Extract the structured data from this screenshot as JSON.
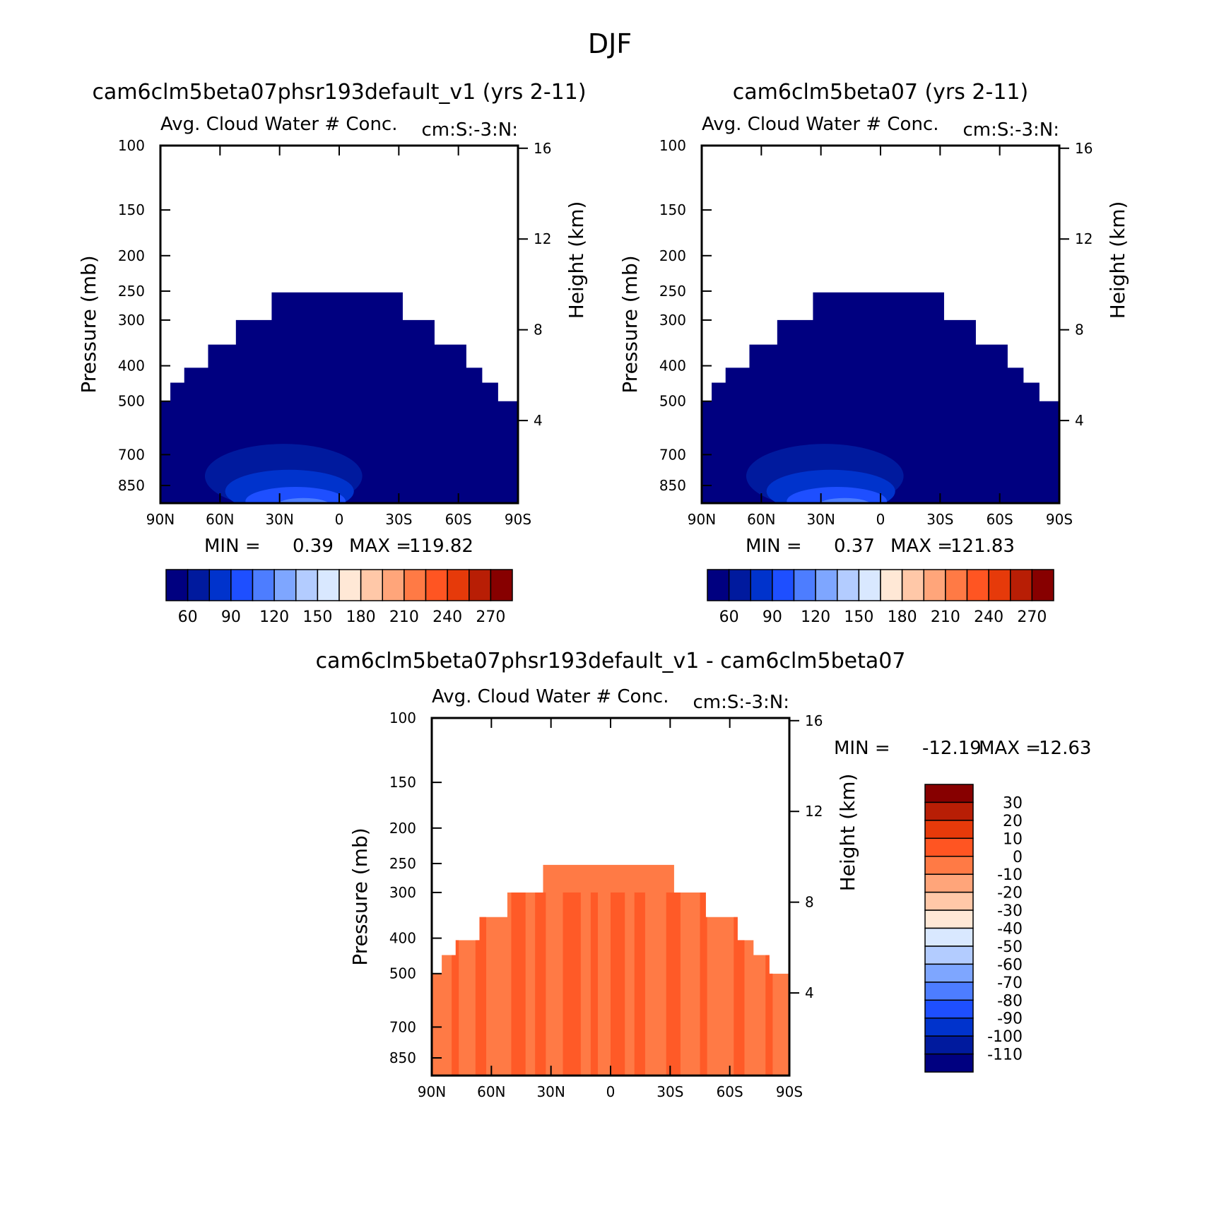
{
  "figure_title": "DJF",
  "colors": {
    "blue_scale": [
      "#000080",
      "#001a9e",
      "#0033cc",
      "#1e4fff",
      "#4d7dff",
      "#7ea6ff",
      "#b3ccff",
      "#d9e8ff"
    ],
    "warm_scale": [
      "#ffe8d6",
      "#ffc8a8",
      "#ffa57a",
      "#ff7a45",
      "#ff5522",
      "#e63a0a",
      "#b81e05",
      "#870000"
    ],
    "panel1_fill": "#000080",
    "diff_fill_light": "#ff7a45",
    "diff_fill_dark": "#ff5522"
  },
  "chart_data": [
    {
      "type": "heatmap",
      "title": "cam6clm5beta07phsr193default_v1 (yrs 2-11)",
      "subtitle": "Avg. Cloud Water # Conc.",
      "units": "cm:S:-3:N:",
      "ylabel": "Pressure (mb)",
      "ylabel_right": "Height (km)",
      "x_ticks": [
        "90N",
        "60N",
        "30N",
        "0",
        "30S",
        "60S",
        "90S"
      ],
      "x_range": [
        90,
        -90
      ],
      "y_ticks": [
        "100",
        "150",
        "200",
        "250",
        "300",
        "400",
        "500",
        "700",
        "850"
      ],
      "y_right_ticks": [
        "16",
        "12",
        "8",
        "4"
      ],
      "min_label": "MIN =",
      "min_value": "0.39",
      "max_label": "MAX =",
      "max_value": "119.82",
      "colorbar_labels": [
        "60",
        "90",
        "120",
        "150",
        "180",
        "210",
        "240",
        "270"
      ]
    },
    {
      "type": "heatmap",
      "title": "cam6clm5beta07 (yrs 2-11)",
      "subtitle": "Avg. Cloud Water # Conc.",
      "units": "cm:S:-3:N:",
      "ylabel": "Pressure (mb)",
      "ylabel_right": "Height (km)",
      "x_ticks": [
        "90N",
        "60N",
        "30N",
        "0",
        "30S",
        "60S",
        "90S"
      ],
      "x_range": [
        90,
        -90
      ],
      "y_ticks": [
        "100",
        "150",
        "200",
        "250",
        "300",
        "400",
        "500",
        "700",
        "850"
      ],
      "y_right_ticks": [
        "16",
        "12",
        "8",
        "4"
      ],
      "min_label": "MIN =",
      "min_value": "0.37",
      "max_label": "MAX =",
      "max_value": "121.83",
      "colorbar_labels": [
        "60",
        "90",
        "120",
        "150",
        "180",
        "210",
        "240",
        "270"
      ]
    },
    {
      "type": "heatmap",
      "title": "cam6clm5beta07phsr193default_v1 - cam6clm5beta07",
      "subtitle": "Avg. Cloud Water # Conc.",
      "units": "cm:S:-3:N:",
      "ylabel": "Pressure (mb)",
      "ylabel_right": "Height (km)",
      "x_ticks": [
        "90N",
        "60N",
        "30N",
        "0",
        "30S",
        "60S",
        "90S"
      ],
      "x_range": [
        90,
        -90
      ],
      "y_ticks": [
        "100",
        "150",
        "200",
        "250",
        "300",
        "400",
        "500",
        "700",
        "850"
      ],
      "y_right_ticks": [
        "16",
        "12",
        "8",
        "4"
      ],
      "min_label": "MIN =",
      "min_value": "-12.19",
      "max_label": "MAX =",
      "max_value": "12.63",
      "colorbar_labels": [
        "30",
        "20",
        "10",
        "0",
        "-10",
        "-20",
        "-30",
        "-40",
        "-50",
        "-60",
        "-70",
        "-80",
        "-90",
        "-100",
        "-110"
      ]
    }
  ]
}
